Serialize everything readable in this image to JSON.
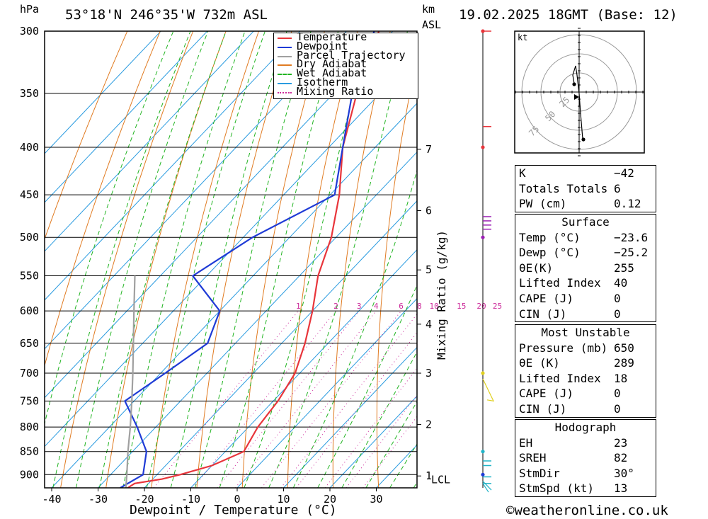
{
  "header": {
    "location": "53°18'N 246°35'W 732m ASL",
    "datetime": "19.02.2025 18GMT (Base: 12)",
    "hpa_label": "hPa",
    "km_label": "km",
    "asl_label": "ASL"
  },
  "legend": [
    {
      "label": "Temperature",
      "color": "#e8353b",
      "style": "solid"
    },
    {
      "label": "Dewpoint",
      "color": "#1f3bd6",
      "style": "solid"
    },
    {
      "label": "Parcel Trajectory",
      "color": "#a0a0a0",
      "style": "solid"
    },
    {
      "label": "Dry Adiabat",
      "color": "#e07b22",
      "style": "solid"
    },
    {
      "label": "Wet Adiabat",
      "color": "#22b422",
      "style": "dashed"
    },
    {
      "label": "Isotherm",
      "color": "#2a9be0",
      "style": "solid"
    },
    {
      "label": "Mixing Ratio",
      "color": "#cc2a9a",
      "style": "dotted"
    }
  ],
  "chart_data": {
    "type": "line",
    "xlabel": "Dewpoint / Temperature (°C)",
    "ylabel": "hPa",
    "right_axis_label": "Mixing Ratio (g/kg)",
    "x_ticks": [
      -40,
      -30,
      -20,
      -10,
      0,
      10,
      20,
      30
    ],
    "pressure_ticks": [
      300,
      350,
      400,
      450,
      500,
      550,
      600,
      650,
      700,
      750,
      800,
      850,
      900
    ],
    "km_ticks": [
      {
        "label": "7",
        "p": 402
      },
      {
        "label": "6",
        "p": 468
      },
      {
        "label": "5",
        "p": 542
      },
      {
        "label": "4",
        "p": 620
      },
      {
        "label": "3",
        "p": 700
      },
      {
        "label": "2",
        "p": 795
      },
      {
        "label": "1",
        "p": 903
      }
    ],
    "lcl_label": "LCL",
    "lcl_p": 905,
    "mixing_ratio_labels": [
      "1",
      "2",
      "3",
      "4",
      "6",
      "8",
      "10",
      "15",
      "20",
      "25"
    ],
    "mixing_ratio_label_p": 600,
    "series": [
      {
        "name": "Temperature",
        "color": "#e8353b",
        "points": [
          [
            930,
            -23.6
          ],
          [
            920,
            -23.0
          ],
          [
            910,
            -18
          ],
          [
            900,
            -15
          ],
          [
            880,
            -10
          ],
          [
            850,
            -6
          ],
          [
            800,
            -8
          ],
          [
            750,
            -9
          ],
          [
            700,
            -11
          ],
          [
            650,
            -15
          ],
          [
            600,
            -20
          ],
          [
            550,
            -26
          ],
          [
            500,
            -31
          ],
          [
            450,
            -38
          ],
          [
            400,
            -47
          ],
          [
            350,
            -55
          ],
          [
            300,
            -63
          ]
        ]
      },
      {
        "name": "Dewpoint",
        "color": "#1f3bd6",
        "points": [
          [
            930,
            -25.2
          ],
          [
            900,
            -23
          ],
          [
            850,
            -27
          ],
          [
            800,
            -34
          ],
          [
            750,
            -42
          ],
          [
            700,
            -39
          ],
          [
            650,
            -36
          ],
          [
            600,
            -40
          ],
          [
            550,
            -53
          ],
          [
            500,
            -48
          ],
          [
            450,
            -39
          ],
          [
            400,
            -47
          ],
          [
            350,
            -56
          ],
          [
            300,
            -64
          ]
        ]
      },
      {
        "name": "Parcel Trajectory",
        "color": "#a0a0a0",
        "points": [
          [
            930,
            -24
          ],
          [
            900,
            -26.5
          ],
          [
            850,
            -31
          ],
          [
            800,
            -35.5
          ],
          [
            750,
            -40.5
          ],
          [
            700,
            -46
          ],
          [
            650,
            -52
          ],
          [
            600,
            -58.5
          ],
          [
            550,
            -65.5
          ]
        ]
      }
    ]
  },
  "wind_profile": {
    "colors": {
      "low": "#22b4c8",
      "mid": "#e0d020",
      "upper": "#9b1fb4",
      "top": "#e8353b"
    }
  },
  "hodograph": {
    "unit": "kt",
    "ring_labels": [
      "25",
      "50",
      "75"
    ]
  },
  "indices": {
    "general": [
      {
        "label": "K",
        "value": "-42"
      },
      {
        "label": "Totals Totals",
        "value": "6"
      },
      {
        "label": "PW (cm)",
        "value": "0.12"
      }
    ],
    "surface": {
      "title": "Surface",
      "rows": [
        {
          "label": "Temp (°C)",
          "value": "-23.6"
        },
        {
          "label": "Dewp (°C)",
          "value": "-25.2"
        },
        {
          "label": "θE(K)",
          "value": "255"
        },
        {
          "label": "Lifted Index",
          "value": "40"
        },
        {
          "label": "CAPE (J)",
          "value": "0"
        },
        {
          "label": "CIN (J)",
          "value": "0"
        }
      ]
    },
    "most_unstable": {
      "title": "Most Unstable",
      "rows": [
        {
          "label": "Pressure (mb)",
          "value": "650"
        },
        {
          "label": "θE (K)",
          "value": "289"
        },
        {
          "label": "Lifted Index",
          "value": "18"
        },
        {
          "label": "CAPE (J)",
          "value": "0"
        },
        {
          "label": "CIN (J)",
          "value": "0"
        }
      ]
    },
    "hodograph_table": {
      "title": "Hodograph",
      "rows": [
        {
          "label": "EH",
          "value": "23"
        },
        {
          "label": "SREH",
          "value": "82"
        },
        {
          "label": "StmDir",
          "value": "30°"
        },
        {
          "label": "StmSpd (kt)",
          "value": "13"
        }
      ]
    }
  },
  "footer": {
    "copyright_symbol": "©",
    "site": "weatheronline.co.uk"
  }
}
